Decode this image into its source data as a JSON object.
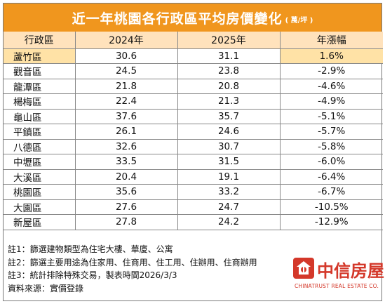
{
  "title": "近一年桃園各行政區平均房價變化",
  "unit": "( 萬/坪 )",
  "chart_data": {
    "type": "table",
    "columns": [
      "行政區",
      "2024年",
      "2025年",
      "年漲幅"
    ],
    "rows": [
      {
        "area": "蘆竹區",
        "y2024": "30.6",
        "y2025": "31.1",
        "change": "1.6%",
        "highlight": true
      },
      {
        "area": "觀音區",
        "y2024": "24.5",
        "y2025": "23.8",
        "change": "-2.9%"
      },
      {
        "area": "龍潭區",
        "y2024": "21.8",
        "y2025": "20.8",
        "change": "-4.6%"
      },
      {
        "area": "楊梅區",
        "y2024": "22.4",
        "y2025": "21.3",
        "change": "-4.9%"
      },
      {
        "area": "龜山區",
        "y2024": "37.6",
        "y2025": "35.7",
        "change": "-5.1%"
      },
      {
        "area": "平鎮區",
        "y2024": "26.1",
        "y2025": "24.6",
        "change": "-5.7%"
      },
      {
        "area": "八德區",
        "y2024": "32.6",
        "y2025": "30.7",
        "change": "-5.8%"
      },
      {
        "area": "中壢區",
        "y2024": "33.5",
        "y2025": "31.5",
        "change": "-6.0%"
      },
      {
        "area": "大溪區",
        "y2024": "20.4",
        "y2025": "19.1",
        "change": "-6.4%"
      },
      {
        "area": "桃園區",
        "y2024": "35.6",
        "y2025": "33.2",
        "change": "-6.7%"
      },
      {
        "area": "大園區",
        "y2024": "27.6",
        "y2025": "24.7",
        "change": "-10.5%"
      },
      {
        "area": "新屋區",
        "y2024": "27.8",
        "y2025": "24.2",
        "change": "-12.9%"
      }
    ]
  },
  "notes": [
    "註1：篩選建物類型為住宅大樓、華廈、公寓",
    "註2：篩選主要用途為住家用、住商用、住工用、住辦用、住商辦用",
    "註3：統計排除特殊交易，製表時間2026/3/3",
    "資料來源：實價登錄"
  ],
  "logo": {
    "brand": "中信房屋",
    "sub": "CHINATRUST REAL ESTATE CO.",
    "icon": "chinatrust-house-logo-icon",
    "color": "#d4382a"
  },
  "colors": {
    "title_bg": "#f0961e",
    "header_bg": "#ffe2bc",
    "highlight_bg": "#ffe2a6"
  }
}
